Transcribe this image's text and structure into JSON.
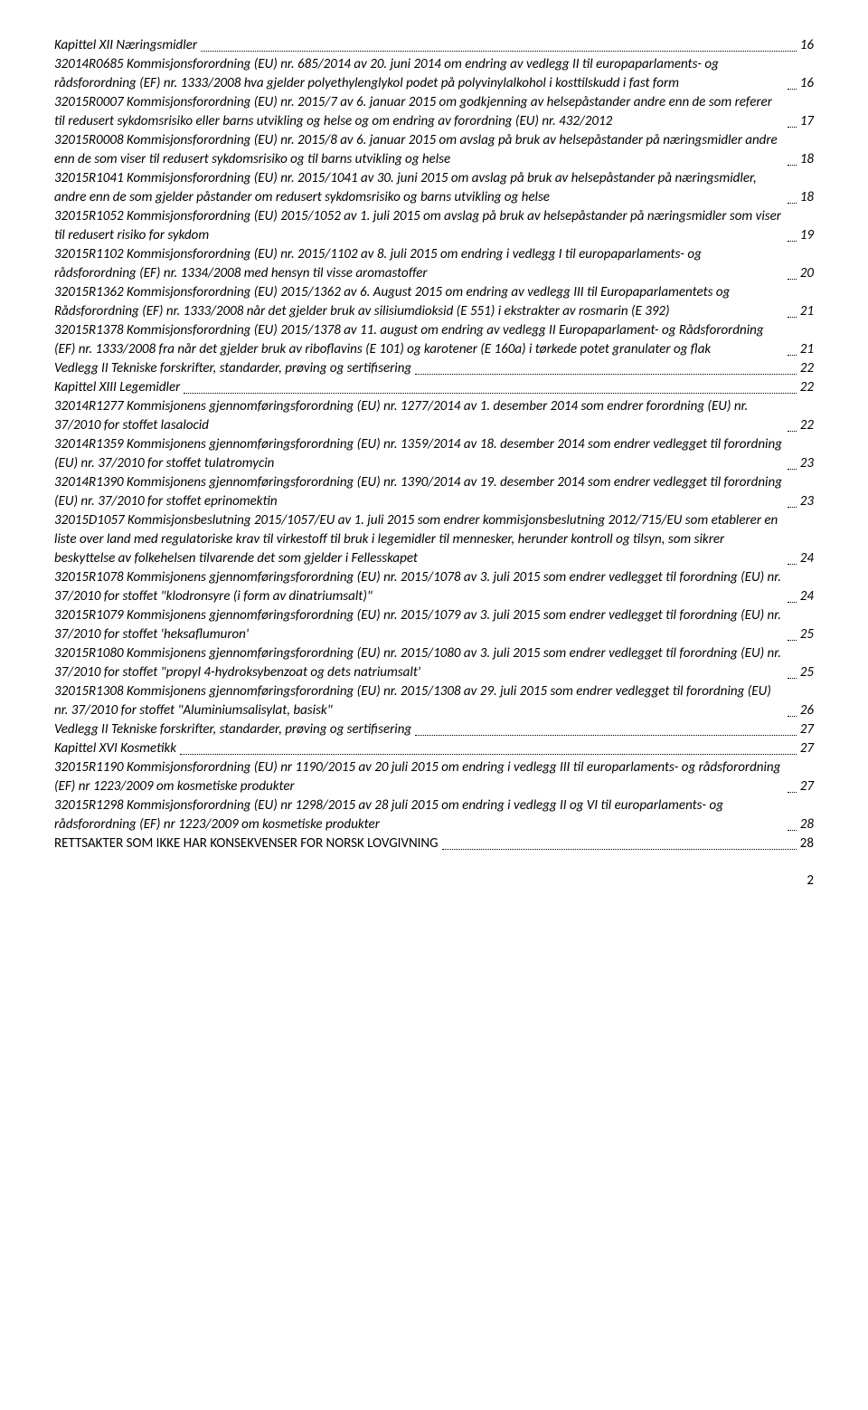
{
  "entries": [
    {
      "text": "Kapittel XII Næringsmidler",
      "page": "16",
      "italic": true
    },
    {
      "text": "32014R0685 Kommisjonsforordning (EU) nr. 685/2014 av 20. juni 2014 om endring av vedlegg II til europaparlaments- og rådsforordning (EF) nr. 1333/2008 hva gjelder polyethylenglykol podet på polyvinylalkohol i kosttilskudd i fast form",
      "page": "16",
      "italic": true
    },
    {
      "text": "32015R0007 Kommisjonsforordning (EU) nr. 2015/7 av 6. januar 2015 om godkjenning av helsepåstander andre enn de som referer til redusert sykdomsrisiko eller barns utvikling og helse og om endring av forordning (EU) nr. 432/2012",
      "page": "17",
      "italic": true
    },
    {
      "text": "32015R0008 Kommisjonsforordning (EU) nr. 2015/8 av 6. januar 2015 om avslag på bruk av helsepåstander på næringsmidler andre enn de som viser til redusert sykdomsrisiko og til barns utvikling og helse",
      "page": "18",
      "italic": true
    },
    {
      "text": "32015R1041 Kommisjonsforordning (EU) nr. 2015/1041 av 30. juni 2015 om avslag på bruk av helsepåstander på næringsmidler, andre enn de som gjelder påstander om redusert sykdomsrisiko og barns utvikling og helse",
      "page": "18",
      "italic": true
    },
    {
      "text": "32015R1052 Kommisjonsforordning (EU) 2015/1052 av 1. juli 2015 om avslag på bruk av helsepåstander på næringsmidler som viser til redusert risiko for sykdom",
      "page": "19",
      "italic": true
    },
    {
      "text": "32015R1102 Kommisjonsforordning (EU) nr. 2015/1102 av 8. juli 2015 om endring i vedlegg I til europaparlaments- og rådsforordning (EF) nr. 1334/2008 med hensyn til visse aromastoffer",
      "page": "20",
      "italic": true
    },
    {
      "text": "32015R1362 Kommisjonsforordning (EU) 2015/1362 av 6. August 2015 om endring av vedlegg III til Europaparlamentets og Rådsforordning (EF) nr. 1333/2008 når det gjelder bruk av silisiumdioksid (E 551) i ekstrakter av rosmarin (E 392)",
      "page": "21",
      "italic": true
    },
    {
      "text": "32015R1378 Kommisjonsforordning (EU) 2015/1378 av 11. august om endring av vedlegg II Europaparlament- og Rådsforordning (EF) nr. 1333/2008 fra når det gjelder bruk av riboflavins (E 101) og karotener (E 160a) i tørkede potet granulater og flak",
      "page": "21",
      "italic": true
    },
    {
      "text": "Vedlegg II Tekniske forskrifter, standarder, prøving og sertifisering",
      "page": "22",
      "italic": true
    },
    {
      "text": "Kapittel XIII Legemidler",
      "page": "22",
      "italic": true
    },
    {
      "text": "32014R1277 Kommisjonens gjennomføringsforordning (EU) nr. 1277/2014 av 1. desember 2014 som endrer forordning (EU) nr. 37/2010 for stoffet lasalocid",
      "page": "22",
      "italic": true
    },
    {
      "text": "32014R1359 Kommisjonens gjennomføringsforordning (EU) nr. 1359/2014 av 18. desember 2014 som endrer vedlegget til forordning (EU) nr. 37/2010 for stoffet tulatromycin",
      "page": "23",
      "italic": true
    },
    {
      "text": "32014R1390 Kommisjonens gjennomføringsforordning (EU) nr. 1390/2014 av 19. desember 2014 som endrer vedlegget til forordning (EU) nr. 37/2010 for stoffet eprinomektin",
      "page": "23",
      "italic": true
    },
    {
      "text": "32015D1057 Kommisjonsbeslutning 2015/1057/EU av 1. juli 2015 som endrer kommisjonsbeslutning 2012/715/EU som etablerer en liste over land med regulatoriske krav til virkestoff til bruk i legemidler til mennesker, herunder kontroll og tilsyn, som sikrer beskyttelse av folkehelsen tilvarende det som gjelder i Fellesskapet",
      "page": "24",
      "italic": true
    },
    {
      "text": "32015R1078 Kommisjonens gjennomføringsforordning (EU) nr. 2015/1078 av 3. juli 2015 som endrer vedlegget til forordning (EU) nr. 37/2010 for stoffet \"klodronsyre (i form av dinatriumsalt)\"",
      "page": "24",
      "italic": true
    },
    {
      "text": "32015R1079 Kommisjonens gjennomføringsforordning (EU) nr. 2015/1079 av 3. juli 2015 som endrer vedlegget til forordning (EU) nr. 37/2010 for stoffet 'heksaflumuron'",
      "page": "25",
      "italic": true
    },
    {
      "text": "32015R1080 Kommisjonens gjennomføringsforordning (EU) nr. 2015/1080 av 3. juli 2015 som endrer vedlegget til forordning (EU) nr. 37/2010 for stoffet \"propyl 4-hydroksybenzoat og dets natriumsalt'",
      "page": "25",
      "italic": true
    },
    {
      "text": "32015R1308 Kommisjonens gjennomføringsforordning (EU) nr. 2015/1308 av 29. juli 2015 som endrer vedlegget til forordning (EU) nr. 37/2010 for stoffet \"Aluminiumsalisylat, basisk\"",
      "page": "26",
      "italic": true
    },
    {
      "text": "Vedlegg II Tekniske forskrifter, standarder, prøving og sertifisering",
      "page": "27",
      "italic": true
    },
    {
      "text": "Kapittel XVI Kosmetikk",
      "page": "27",
      "italic": true
    },
    {
      "text": "32015R1190 Kommisjonsforordning (EU) nr 1190/2015 av 20 juli 2015 om endring i vedlegg III til europarlaments- og rådsforordning (EF) nr 1223/2009 om kosmetiske produkter",
      "page": "27",
      "italic": true
    },
    {
      "text": "32015R1298 Kommisjonsforordning (EU) nr 1298/2015 av 28 juli 2015 om endring i vedlegg II og VI til europarlaments- og rådsforordning (EF) nr 1223/2009 om kosmetiske produkter",
      "page": "28",
      "italic": true
    },
    {
      "text": "RETTSAKTER SOM IKKE HAR KONSEKVENSER FOR NORSK LOVGIVNING",
      "page": "28",
      "italic": false
    }
  ],
  "pageNumber": "2"
}
